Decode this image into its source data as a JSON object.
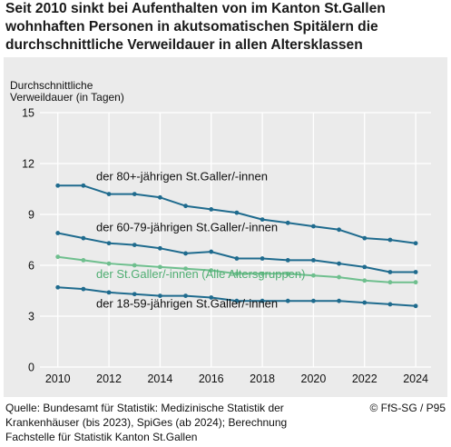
{
  "header": {
    "title": "Seit 2010 sinkt bei Aufenthalten von im Kanton St.Gallen wohnhaften Personen in akutsomatischen Spitälern die durchschnittliche Verweildauer in allen Altersklassen"
  },
  "footer": {
    "source": "Quelle: Bundesamt für Statistik: Medizinische Statistik der Krankenhäuser (bis 2023), SpiGes (ab 2024); Berechnung Fachstelle für Statistik Kanton St.Gallen",
    "copyright": "© FfS-SG / P95"
  },
  "colors": {
    "dark_series": "#1f6b8e",
    "total_series": "#6fbf8e",
    "panel_bg": "#ebebeb",
    "grid": "#ffffff"
  },
  "chart_data": {
    "type": "line",
    "title": "Seit 2010 sinkt bei Aufenthalten von im Kanton St.Gallen wohnhaften Personen in akutsomatischen Spitälern die durchschnittliche Verweildauer in allen Altersklassen",
    "ylabel_lines": [
      "Durchschnittliche",
      "Verweildauer (in Tagen)"
    ],
    "xlabel": "",
    "ylim": [
      0,
      15
    ],
    "yticks": [
      0,
      3,
      6,
      9,
      12,
      15
    ],
    "xlim": [
      2009.3,
      2024.6
    ],
    "xticks": [
      2010,
      2012,
      2014,
      2016,
      2018,
      2020,
      2022,
      2024
    ],
    "grid": true,
    "x": [
      2010,
      2011,
      2012,
      2013,
      2014,
      2015,
      2016,
      2017,
      2018,
      2019,
      2020,
      2021,
      2022,
      2023,
      2024
    ],
    "series": [
      {
        "name": "der 80+-jährigen St.Galler/-innen",
        "color": "#1f6b8e",
        "values": [
          10.7,
          10.7,
          10.2,
          10.2,
          10.0,
          9.5,
          9.3,
          9.1,
          8.7,
          8.5,
          8.3,
          8.1,
          7.6,
          7.5,
          7.3
        ],
        "label_x": 2011.5,
        "label_y": 11.0
      },
      {
        "name": "der 60-79-jährigen St.Galler/-innen",
        "color": "#1f6b8e",
        "values": [
          7.9,
          7.6,
          7.3,
          7.2,
          7.0,
          6.7,
          6.8,
          6.4,
          6.4,
          6.3,
          6.3,
          6.1,
          5.9,
          5.6,
          5.6
        ],
        "label_x": 2011.5,
        "label_y": 8.0
      },
      {
        "name": "der St.Galler/-innen (Alle Altersgruppen)",
        "color": "#6fbf8e",
        "values": [
          6.5,
          6.3,
          6.1,
          6.0,
          5.9,
          5.8,
          5.7,
          5.5,
          5.5,
          5.5,
          5.4,
          5.3,
          5.1,
          5.0,
          5.0
        ],
        "label_x": 2011.5,
        "label_y": 5.25
      },
      {
        "name": "der 18-59-jährigen St.Galler/-innen",
        "color": "#1f6b8e",
        "values": [
          4.7,
          4.6,
          4.4,
          4.3,
          4.2,
          4.2,
          4.1,
          3.9,
          3.9,
          3.9,
          3.9,
          3.9,
          3.8,
          3.7,
          3.6
        ],
        "label_x": 2011.5,
        "label_y": 3.5
      }
    ]
  }
}
